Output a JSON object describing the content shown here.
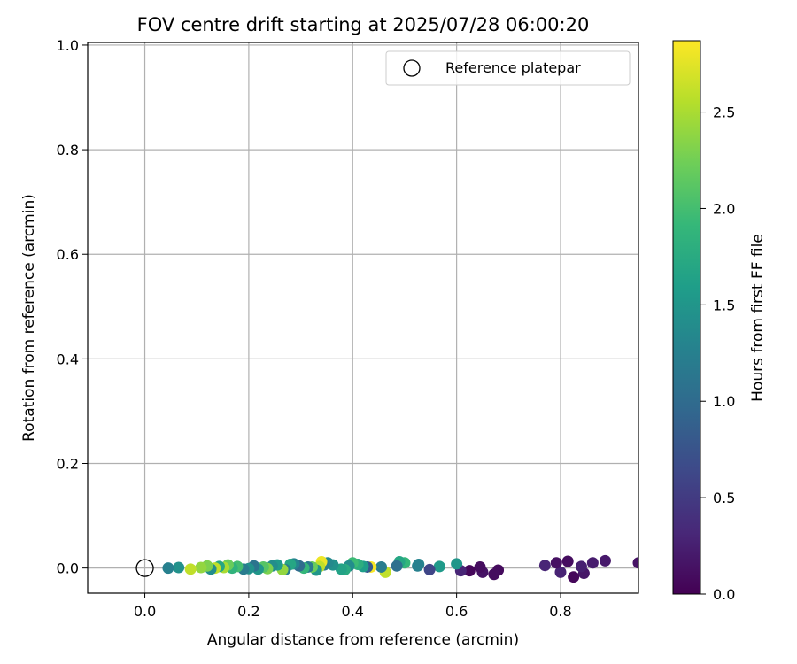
{
  "chart_data": {
    "type": "scatter",
    "title": "FOV centre drift starting at 2025/07/28 06:00:20",
    "xlabel": "Angular distance from reference (arcmin)",
    "ylabel": "Rotation from reference (arcmin)",
    "colorbar_label": "Hours from first FF file",
    "xlim": [
      -0.11,
      0.95
    ],
    "ylim": [
      -0.048,
      1.005
    ],
    "x_ticks": [
      "0.0",
      "0.2",
      "0.4",
      "0.6",
      "0.8"
    ],
    "y_ticks": [
      "0.0",
      "0.2",
      "0.4",
      "0.6",
      "0.8",
      "1.0"
    ],
    "colorbar_ticks": [
      "0.0",
      "0.5",
      "1.0",
      "1.5",
      "2.0",
      "2.5"
    ],
    "colorbar_range": [
      0,
      2.87
    ],
    "grid": true,
    "legend_position": "top-right",
    "colormap": "viridis",
    "reference": {
      "label": "Reference platepar",
      "x": 0.0,
      "y": 0.0
    },
    "points": [
      {
        "x": 0.95,
        "y": 0.01,
        "hours": 0.15
      },
      {
        "x": 0.886,
        "y": 0.014,
        "hours": 0.2
      },
      {
        "x": 0.862,
        "y": 0.01,
        "hours": 0.22
      },
      {
        "x": 0.845,
        "y": -0.01,
        "hours": 0.18
      },
      {
        "x": 0.84,
        "y": 0.003,
        "hours": 0.25
      },
      {
        "x": 0.825,
        "y": -0.017,
        "hours": 0.05
      },
      {
        "x": 0.814,
        "y": 0.013,
        "hours": 0.1
      },
      {
        "x": 0.8,
        "y": -0.008,
        "hours": 0.28
      },
      {
        "x": 0.792,
        "y": 0.01,
        "hours": 0.12
      },
      {
        "x": 0.77,
        "y": 0.005,
        "hours": 0.3
      },
      {
        "x": 0.68,
        "y": -0.004,
        "hours": 0.08
      },
      {
        "x": 0.672,
        "y": -0.012,
        "hours": 0.1
      },
      {
        "x": 0.65,
        "y": -0.008,
        "hours": 0.15
      },
      {
        "x": 0.645,
        "y": 0.002,
        "hours": 0.1
      },
      {
        "x": 0.625,
        "y": -0.005,
        "hours": 0.05
      },
      {
        "x": 0.608,
        "y": -0.005,
        "hours": 0.3
      },
      {
        "x": 0.6,
        "y": 0.008,
        "hours": 1.5
      },
      {
        "x": 0.567,
        "y": 0.003,
        "hours": 1.55
      },
      {
        "x": 0.548,
        "y": -0.003,
        "hours": 0.6
      },
      {
        "x": 0.527,
        "y": 0.007,
        "hours": 1.3
      },
      {
        "x": 0.525,
        "y": 0.004,
        "hours": 1.25
      },
      {
        "x": 0.5,
        "y": 0.01,
        "hours": 1.9
      },
      {
        "x": 0.49,
        "y": 0.012,
        "hours": 1.7
      },
      {
        "x": 0.485,
        "y": 0.004,
        "hours": 1.05
      },
      {
        "x": 0.463,
        "y": -0.008,
        "hours": 2.6
      },
      {
        "x": 0.455,
        "y": 0.002,
        "hours": 1.2
      },
      {
        "x": 0.435,
        "y": 0.002,
        "hours": 2.85
      },
      {
        "x": 0.428,
        "y": 0.002,
        "hours": 0.8
      },
      {
        "x": 0.42,
        "y": 0.003,
        "hours": 1.6
      },
      {
        "x": 0.41,
        "y": 0.007,
        "hours": 1.8
      },
      {
        "x": 0.4,
        "y": 0.01,
        "hours": 1.95
      },
      {
        "x": 0.393,
        "y": 0.004,
        "hours": 1.4
      },
      {
        "x": 0.385,
        "y": -0.003,
        "hours": 1.75
      },
      {
        "x": 0.378,
        "y": -0.002,
        "hours": 1.65
      },
      {
        "x": 0.362,
        "y": 0.006,
        "hours": 1.45
      },
      {
        "x": 0.352,
        "y": 0.01,
        "hours": 1.35
      },
      {
        "x": 0.345,
        "y": 0.006,
        "hours": 1.2
      },
      {
        "x": 0.34,
        "y": 0.012,
        "hours": 2.8
      },
      {
        "x": 0.336,
        "y": 0.003,
        "hours": 2.6
      },
      {
        "x": 0.33,
        "y": -0.004,
        "hours": 1.5
      },
      {
        "x": 0.322,
        "y": 0.002,
        "hours": 2.2
      },
      {
        "x": 0.314,
        "y": 0.002,
        "hours": 1.15
      },
      {
        "x": 0.306,
        "y": 0.0,
        "hours": 1.9
      },
      {
        "x": 0.297,
        "y": 0.004,
        "hours": 1.0
      },
      {
        "x": 0.287,
        "y": 0.008,
        "hours": 1.3
      },
      {
        "x": 0.28,
        "y": 0.007,
        "hours": 1.7
      },
      {
        "x": 0.27,
        "y": -0.003,
        "hours": 1.2
      },
      {
        "x": 0.265,
        "y": -0.003,
        "hours": 2.4
      },
      {
        "x": 0.255,
        "y": 0.006,
        "hours": 1.55
      },
      {
        "x": 0.245,
        "y": 0.004,
        "hours": 1.4
      },
      {
        "x": 0.236,
        "y": -0.001,
        "hours": 2.3
      },
      {
        "x": 0.228,
        "y": 0.002,
        "hours": 2.1
      },
      {
        "x": 0.218,
        "y": -0.002,
        "hours": 1.5
      },
      {
        "x": 0.21,
        "y": 0.004,
        "hours": 1.1
      },
      {
        "x": 0.2,
        "y": -0.001,
        "hours": 1.45
      },
      {
        "x": 0.19,
        "y": -0.002,
        "hours": 1.2
      },
      {
        "x": 0.178,
        "y": 0.003,
        "hours": 2.0
      },
      {
        "x": 0.168,
        "y": 0.0,
        "hours": 1.85
      },
      {
        "x": 0.16,
        "y": 0.006,
        "hours": 2.2
      },
      {
        "x": 0.152,
        "y": 0.001,
        "hours": 2.5
      },
      {
        "x": 0.143,
        "y": 0.003,
        "hours": 1.7
      },
      {
        "x": 0.135,
        "y": 0.0,
        "hours": 2.6
      },
      {
        "x": 0.127,
        "y": -0.002,
        "hours": 1.4
      },
      {
        "x": 0.12,
        "y": 0.004,
        "hours": 2.3
      },
      {
        "x": 0.108,
        "y": 0.001,
        "hours": 2.4
      },
      {
        "x": 0.088,
        "y": -0.002,
        "hours": 2.6
      },
      {
        "x": 0.065,
        "y": 0.001,
        "hours": 1.45
      },
      {
        "x": 0.045,
        "y": 0.0,
        "hours": 1.25
      }
    ]
  }
}
